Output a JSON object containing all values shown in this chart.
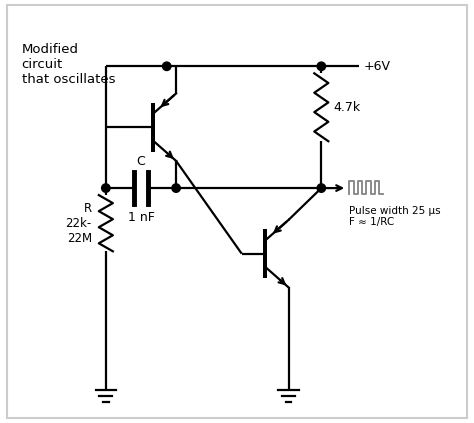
{
  "bg_color": "#ffffff",
  "border_color": "#cccccc",
  "line_color": "#000000",
  "component_color": "#000000",
  "gray_color": "#888888",
  "text_color": "#000000",
  "title_text": "Modified\ncircuit\nthat oscillates",
  "vcc_label": "+6V",
  "r1_label": "R\n22k-\n22M",
  "r2_label": "4.7k",
  "c_label_top": "C",
  "c_label_bot": "1 nF",
  "pulse_label": "Pulse width 25 μs\nF ≈ 1/RC",
  "lw": 1.6
}
